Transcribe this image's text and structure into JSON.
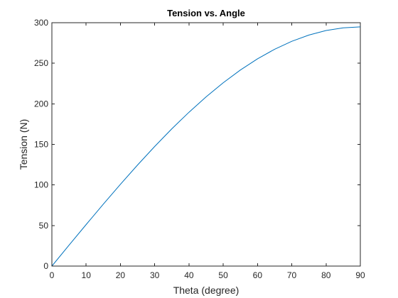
{
  "chart_data": {
    "type": "line",
    "title": "Tension vs. Angle",
    "xlabel": "Theta (degree)",
    "ylabel": "Tension (N)",
    "xlim": [
      0,
      90
    ],
    "ylim": [
      0,
      300
    ],
    "xticks": [
      0,
      10,
      20,
      30,
      40,
      50,
      60,
      70,
      80,
      90
    ],
    "yticks": [
      0,
      50,
      100,
      150,
      200,
      250,
      300
    ],
    "grid": false,
    "series": [
      {
        "color": "#0072BD",
        "x": [
          0,
          5,
          10,
          15,
          20,
          25,
          30,
          35,
          40,
          45,
          50,
          55,
          60,
          65,
          70,
          75,
          80,
          85,
          90
        ],
        "y": [
          0,
          25.7,
          51.2,
          76.3,
          100.8,
          124.6,
          147.5,
          169.2,
          189.6,
          208.6,
          226.0,
          241.7,
          255.5,
          267.3,
          277.1,
          284.8,
          290.4,
          293.7,
          294.8
        ]
      }
    ]
  }
}
